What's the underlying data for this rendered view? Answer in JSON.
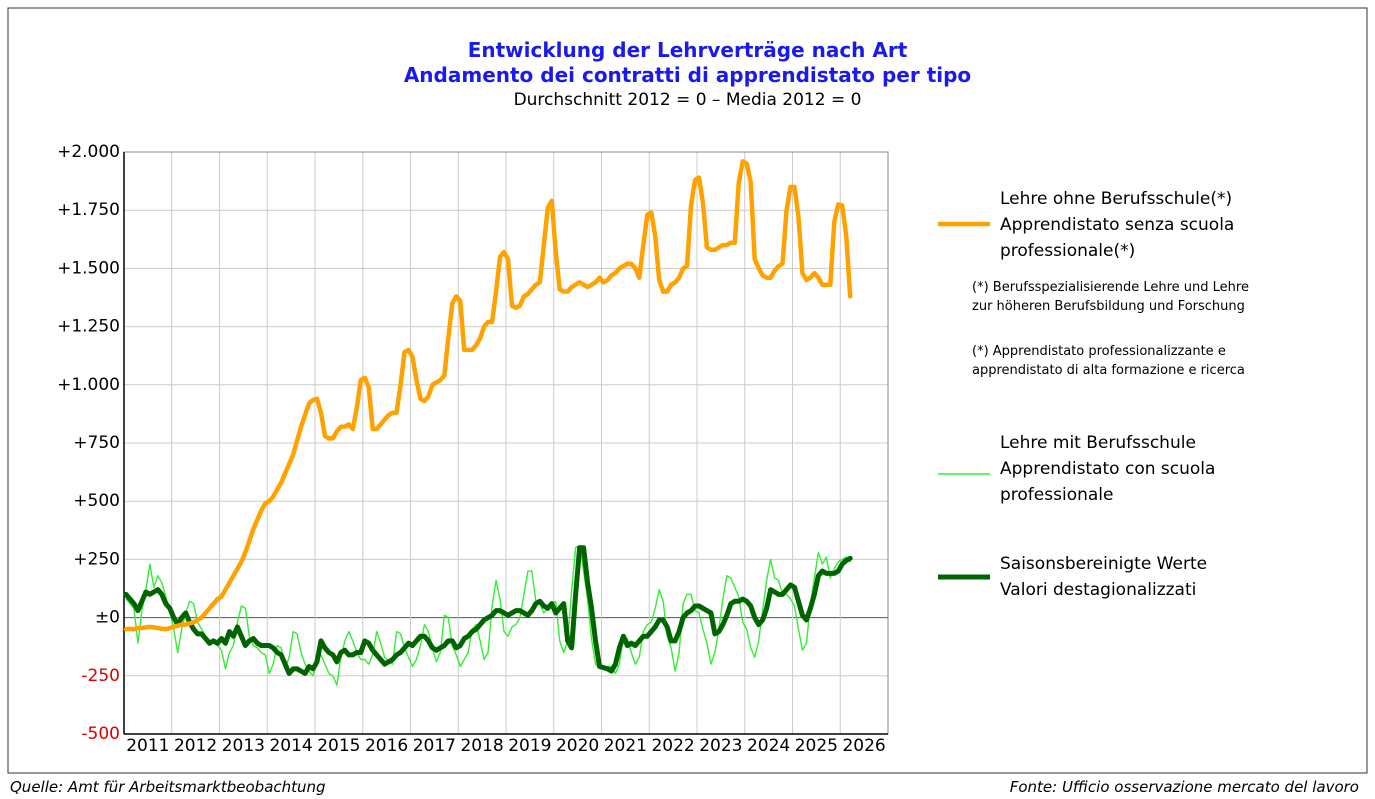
{
  "chart_data": {
    "type": "line",
    "title": "Entwicklung der Lehrverträge nach Art\nAndamento dei contratti di apprendistato per tipo",
    "subtitle": "Durchschnitt 2012 = 0 – Media 2012 = 0",
    "categories": [
      null,
      null,
      null,
      null,
      null,
      null,
      "2011",
      null,
      null,
      null,
      null,
      null,
      null,
      null,
      null,
      null,
      null,
      null,
      "2012",
      null,
      null,
      null,
      null,
      null,
      null,
      null,
      null,
      null,
      null,
      null,
      "2013",
      null,
      null,
      null,
      null,
      null,
      null,
      null,
      null,
      null,
      null,
      null,
      "2014",
      null,
      null,
      null,
      null,
      null,
      null,
      null,
      null,
      null,
      null,
      null,
      "2015",
      null,
      null,
      null,
      null,
      null,
      null,
      null,
      null,
      null,
      null,
      null,
      "2016",
      null,
      null,
      null,
      null,
      null,
      null,
      null,
      null,
      null,
      null,
      null,
      "2017",
      null,
      null,
      null,
      null,
      null,
      null,
      null,
      null,
      null,
      null,
      null,
      "2018",
      null,
      null,
      null,
      null,
      null,
      null,
      null,
      null,
      null,
      null,
      null,
      "2019",
      null,
      null,
      null,
      null,
      null,
      null,
      null,
      null,
      null,
      null,
      null,
      "2020",
      null,
      null,
      null,
      null,
      null,
      null,
      null,
      null,
      null,
      null,
      null,
      "2021",
      null,
      null,
      null,
      null,
      null,
      null,
      null,
      null,
      null,
      null,
      null,
      "2022",
      null,
      null,
      null,
      null,
      null,
      null,
      null,
      null,
      null,
      null,
      null,
      "2023",
      null,
      null,
      null,
      null,
      null,
      null,
      null,
      null,
      null,
      null,
      null,
      "2024",
      null,
      null,
      null,
      null,
      null,
      null,
      null,
      null,
      null,
      null,
      null,
      "2025",
      null,
      null,
      null,
      null,
      null,
      null,
      null,
      null,
      null,
      null,
      null,
      "2026",
      null,
      null,
      null,
      null,
      null
    ],
    "series": [
      {
        "name": "Lehre ohne Berufsschule(*)\nApprendistato senza scuola\nprofessionale(*)",
        "color": "#ffa200",
        "width": 4.5,
        "values": [
          -50,
          -48,
          -50,
          -45,
          -45,
          -42,
          -40,
          -42,
          -45,
          -48,
          -50,
          -45,
          -40,
          -35,
          -30,
          -30,
          -25,
          -20,
          -10,
          0,
          20,
          40,
          60,
          80,
          90,
          120,
          150,
          180,
          210,
          240,
          280,
          330,
          380,
          420,
          460,
          490,
          500,
          520,
          550,
          580,
          620,
          660,
          700,
          760,
          820,
          870,
          920,
          935,
          940,
          880,
          780,
          770,
          770,
          800,
          820,
          820,
          830,
          810,
          900,
          1020,
          1030,
          990,
          810,
          810,
          830,
          850,
          870,
          880,
          880,
          1000,
          1140,
          1150,
          1120,
          1020,
          940,
          930,
          950,
          1000,
          1010,
          1020,
          1040,
          1200,
          1350,
          1380,
          1360,
          1150,
          1150,
          1150,
          1170,
          1200,
          1250,
          1270,
          1270,
          1400,
          1550,
          1570,
          1540,
          1340,
          1330,
          1340,
          1380,
          1390,
          1410,
          1430,
          1440,
          1600,
          1760,
          1790,
          1570,
          1410,
          1400,
          1400,
          1420,
          1430,
          1440,
          1430,
          1420,
          1430,
          1440,
          1460,
          1440,
          1450,
          1470,
          1480,
          1500,
          1510,
          1520,
          1520,
          1500,
          1460,
          1600,
          1730,
          1740,
          1640,
          1450,
          1400,
          1400,
          1430,
          1440,
          1460,
          1500,
          1510,
          1770,
          1880,
          1890,
          1780,
          1590,
          1580,
          1580,
          1590,
          1600,
          1600,
          1610,
          1610,
          1870,
          1960,
          1950,
          1870,
          1540,
          1500,
          1470,
          1460,
          1460,
          1490,
          1510,
          1520,
          1750,
          1850,
          1850,
          1720,
          1480,
          1450,
          1460,
          1480,
          1460,
          1430,
          1430,
          1430,
          1700,
          1775,
          1770,
          1640,
          1380,
          null,
          null,
          null,
          null,
          null,
          null,
          null,
          null,
          null
        ]
      },
      {
        "name": "Lehre mit Berufsschule\nApprendistato con scuola\nprofessionale",
        "color": "#33ee33",
        "width": 1.4,
        "values": [
          80,
          60,
          40,
          -110,
          30,
          120,
          230,
          130,
          180,
          150,
          90,
          30,
          -50,
          -150,
          -50,
          20,
          70,
          60,
          -20,
          -50,
          -80,
          -100,
          -110,
          -120,
          -140,
          -220,
          -150,
          -120,
          -20,
          50,
          40,
          -80,
          -120,
          -130,
          -150,
          -160,
          -240,
          -200,
          -120,
          -130,
          -220,
          -170,
          -60,
          -70,
          -150,
          -200,
          -230,
          -250,
          -190,
          -160,
          -200,
          -240,
          -250,
          -290,
          -170,
          -100,
          -60,
          -100,
          -150,
          -180,
          -180,
          -200,
          -160,
          -60,
          -110,
          -170,
          -190,
          -200,
          -60,
          -70,
          -130,
          -170,
          -210,
          -180,
          -120,
          -30,
          -60,
          -130,
          -190,
          -150,
          10,
          0,
          -120,
          -160,
          -210,
          -180,
          -150,
          -50,
          -30,
          -100,
          -180,
          -150,
          50,
          160,
          80,
          -60,
          -80,
          -40,
          -30,
          0,
          100,
          200,
          200,
          70,
          60,
          20,
          40,
          60,
          70,
          -100,
          -150,
          -100,
          120,
          300,
          310,
          200,
          80,
          -90,
          -200,
          -210,
          -220,
          -210,
          -210,
          -240,
          -200,
          -80,
          -90,
          -150,
          -200,
          -170,
          -60,
          -30,
          -20,
          40,
          120,
          70,
          -80,
          -130,
          -230,
          -150,
          60,
          100,
          100,
          30,
          20,
          -50,
          -110,
          -200,
          -150,
          -50,
          80,
          180,
          170,
          130,
          90,
          -20,
          -50,
          -130,
          -170,
          -100,
          30,
          160,
          250,
          170,
          160,
          100,
          100,
          80,
          50,
          -50,
          -140,
          -110,
          60,
          170,
          280,
          230,
          260,
          170,
          210,
          240,
          250,
          260,
          240,
          null,
          null,
          null,
          null,
          null,
          null,
          null,
          null,
          null
        ]
      },
      {
        "name": "Saisonsbereinigte Werte\nValori destagionalizzati",
        "color": "#006400",
        "width": 5,
        "values": [
          100,
          80,
          60,
          30,
          70,
          110,
          100,
          110,
          120,
          100,
          60,
          40,
          0,
          -30,
          0,
          20,
          -20,
          -50,
          -70,
          -70,
          -90,
          -110,
          -100,
          -110,
          -90,
          -110,
          -60,
          -80,
          -40,
          -80,
          -120,
          -100,
          -90,
          -110,
          -120,
          -120,
          -120,
          -130,
          -150,
          -160,
          -200,
          -240,
          -220,
          -220,
          -230,
          -240,
          -210,
          -220,
          -190,
          -100,
          -130,
          -150,
          -160,
          -190,
          -150,
          -140,
          -160,
          -160,
          -150,
          -150,
          -100,
          -110,
          -140,
          -160,
          -180,
          -200,
          -190,
          -180,
          -160,
          -150,
          -130,
          -110,
          -120,
          -100,
          -80,
          -80,
          -100,
          -130,
          -140,
          -130,
          -120,
          -100,
          -100,
          -130,
          -120,
          -90,
          -80,
          -60,
          -50,
          -30,
          -10,
          0,
          10,
          30,
          30,
          20,
          10,
          20,
          30,
          30,
          20,
          10,
          30,
          60,
          70,
          50,
          40,
          60,
          20,
          40,
          60,
          -100,
          -130,
          100,
          300,
          300,
          150,
          40,
          -100,
          -210,
          -215,
          -220,
          -230,
          -200,
          -130,
          -80,
          -120,
          -110,
          -120,
          -100,
          -80,
          -80,
          -60,
          -40,
          -10,
          -10,
          -40,
          -100,
          -100,
          -60,
          0,
          20,
          30,
          50,
          50,
          40,
          30,
          20,
          -70,
          -60,
          -30,
          10,
          60,
          70,
          70,
          80,
          70,
          50,
          0,
          -30,
          -10,
          40,
          120,
          110,
          100,
          100,
          120,
          140,
          130,
          70,
          10,
          -10,
          40,
          100,
          180,
          200,
          190,
          190,
          190,
          200,
          230,
          245,
          255,
          null,
          null,
          null,
          null,
          null,
          null,
          null,
          null,
          null
        ]
      }
    ],
    "ylim": [
      -500,
      2000
    ],
    "yticks": [
      {
        "value": -500,
        "label": "-500"
      },
      {
        "value": -250,
        "label": "-250"
      },
      {
        "value": 0,
        "label": "±0"
      },
      {
        "value": 250,
        "label": "+250"
      },
      {
        "value": 500,
        "label": "+500"
      },
      {
        "value": 750,
        "label": "+750"
      },
      {
        "value": 1000,
        "label": "+1.000"
      },
      {
        "value": 1250,
        "label": "+1.250"
      },
      {
        "value": 1500,
        "label": "+1.500"
      },
      {
        "value": 1750,
        "label": "+1.750"
      },
      {
        "value": 2000,
        "label": "+2.000"
      }
    ],
    "negative_tick_color": "#e00000",
    "grid": true,
    "notes": [
      "(*) Berufsspezialisierende Lehre und Lehre\n    zur höheren Berufsbildung und Forschung",
      "(*) Apprendistato professionalizzante e\n    apprendistato di alta formazione e ricerca"
    ],
    "source_left": "Quelle: Amt für Arbeitsmarktbeobachtung",
    "source_right": "Fonte: Ufficio osservazione mercato del lavoro"
  }
}
